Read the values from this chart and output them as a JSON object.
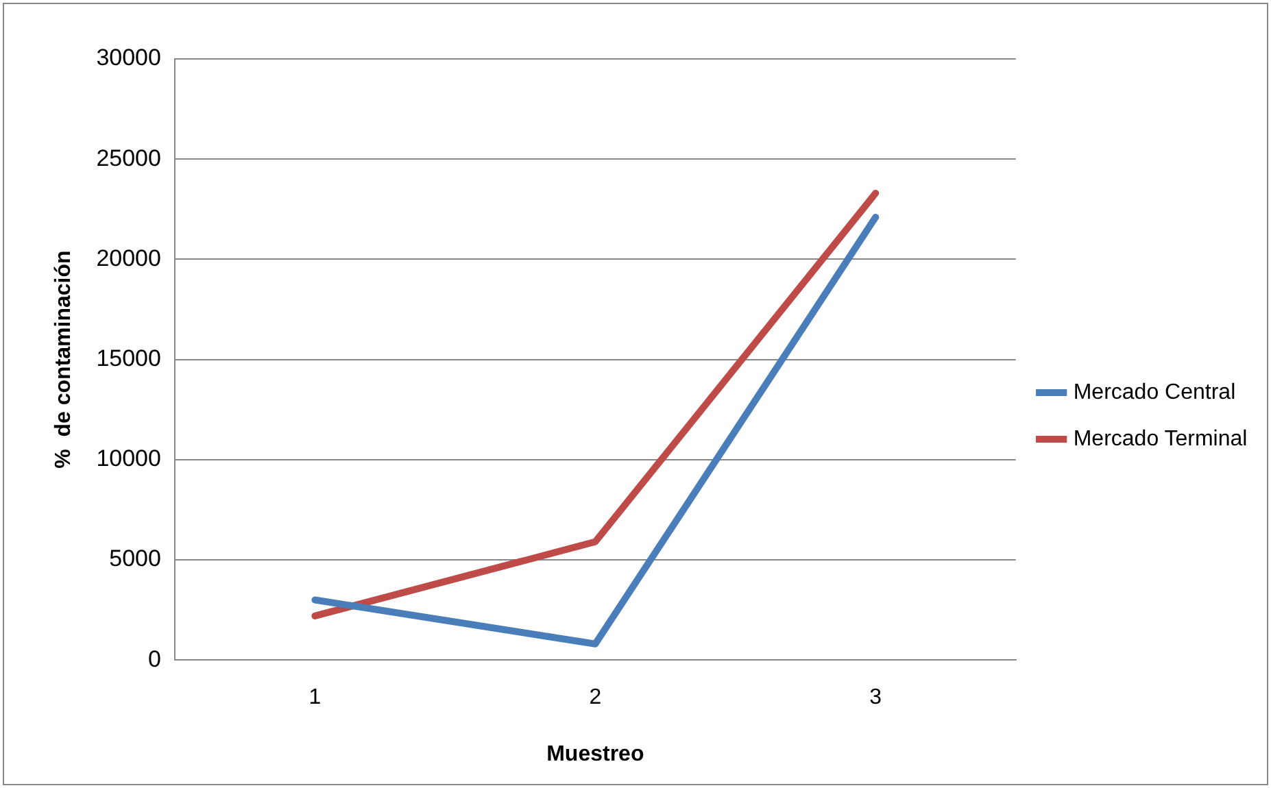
{
  "chart_data": {
    "type": "line",
    "xlabel": "Muestreo",
    "ylabel": "%  de contaminación",
    "categories": [
      "1",
      "2",
      "3"
    ],
    "series": [
      {
        "name": "Mercado Central",
        "color": "#4a7ebb",
        "values": [
          3000,
          800,
          22100
        ]
      },
      {
        "name": "Mercado Terminal",
        "color": "#be4b48",
        "values": [
          2200,
          5900,
          23300
        ]
      }
    ],
    "ylim": [
      0,
      30000
    ],
    "yticks": [
      0,
      5000,
      10000,
      15000,
      20000,
      25000,
      30000
    ],
    "grid": "y",
    "legend": "right",
    "marker": "none",
    "line_style": "solid"
  }
}
